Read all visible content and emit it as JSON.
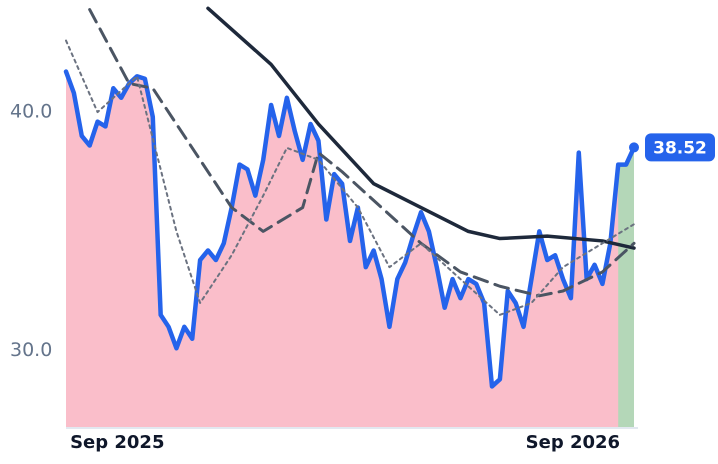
{
  "chart_data": {
    "type": "line",
    "xlim": [
      0,
      72
    ],
    "ylim": [
      26.8,
      44.7
    ],
    "xticks": [
      {
        "value": 6.5,
        "label": "Sep 2025"
      },
      {
        "value": 64.25,
        "label": "Sep 2026"
      }
    ],
    "yticks": [
      {
        "value": 30,
        "label": "30.0"
      },
      {
        "value": 40,
        "label": "40.0"
      }
    ],
    "series": [
      {
        "color": "#2563eb",
        "fill": "#f9b3c1",
        "style": "solid",
        "width": 4.5,
        "end_marker": true,
        "x": [
          0,
          1,
          2,
          3,
          4,
          5,
          6,
          7,
          8,
          9,
          10,
          11,
          12,
          13,
          14,
          15,
          16,
          17,
          18,
          19,
          20,
          21,
          22,
          23,
          24,
          25,
          26,
          27,
          28,
          29,
          30,
          31,
          32,
          33,
          34,
          35,
          36,
          37,
          38,
          39,
          40,
          41,
          42,
          43,
          44,
          45,
          46,
          47,
          48,
          49,
          50,
          51,
          52,
          53,
          54,
          55,
          56,
          57,
          58,
          59,
          60,
          61,
          62,
          63,
          64,
          65,
          66,
          67,
          68,
          69,
          70,
          71,
          72
        ],
        "values": [
          41.7,
          40.8,
          39.0,
          38.6,
          39.6,
          39.4,
          41.0,
          40.6,
          41.2,
          41.5,
          41.4,
          39.8,
          31.5,
          31.0,
          30.1,
          31.0,
          30.5,
          33.8,
          34.2,
          33.8,
          34.5,
          36.0,
          37.8,
          37.6,
          36.5,
          38.0,
          40.3,
          39.0,
          40.6,
          39.2,
          38.0,
          39.5,
          38.8,
          35.5,
          37.4,
          37.0,
          34.6,
          36.0,
          33.5,
          34.2,
          33.0,
          31.0,
          33.0,
          33.7,
          34.8,
          35.8,
          35.0,
          33.5,
          31.8,
          33.0,
          32.2,
          33.0,
          32.8,
          32.0,
          28.5,
          28.8,
          32.5,
          32.0,
          31.0,
          33.0,
          35.0,
          33.8,
          34.0,
          33.0,
          32.2,
          38.3,
          33.0,
          33.6,
          32.8,
          34.5,
          37.8,
          37.8,
          38.52
        ]
      },
      {
        "fill": "#a7dcb5",
        "x": [
          70,
          71,
          72
        ],
        "values": [
          37.8,
          37.8,
          38.52
        ]
      },
      {
        "color": "#1e293b",
        "style": "solid",
        "width": 3.5,
        "x": [
          18,
          26,
          32,
          39,
          45,
          51,
          55,
          61,
          68,
          72
        ],
        "values": [
          44.35,
          42.0,
          39.5,
          37.0,
          36.0,
          35.0,
          34.7,
          34.8,
          34.6,
          34.3
        ]
      },
      {
        "color": "#4b5563",
        "style": "dashed",
        "width": 3,
        "x": [
          3,
          8,
          11,
          21,
          25,
          30,
          32,
          35,
          40,
          45,
          50,
          55,
          60,
          63,
          68,
          72
        ],
        "values": [
          44.3,
          41.2,
          41.0,
          36.0,
          35.0,
          36.0,
          38.3,
          37.5,
          36.0,
          34.5,
          33.3,
          32.7,
          32.3,
          32.5,
          33.3,
          34.5
        ]
      },
      {
        "color": "#6b7280",
        "style": "dotted",
        "width": 2,
        "x": [
          0,
          4,
          9,
          14,
          17,
          21,
          25,
          28,
          32,
          37,
          41,
          45,
          50,
          55,
          59,
          63,
          68,
          72
        ],
        "values": [
          43.0,
          40.0,
          41.5,
          35.0,
          32.0,
          34.0,
          36.5,
          38.5,
          38.0,
          36.0,
          33.5,
          34.5,
          33.0,
          31.5,
          32.0,
          33.5,
          34.5,
          35.3
        ]
      }
    ]
  }
}
